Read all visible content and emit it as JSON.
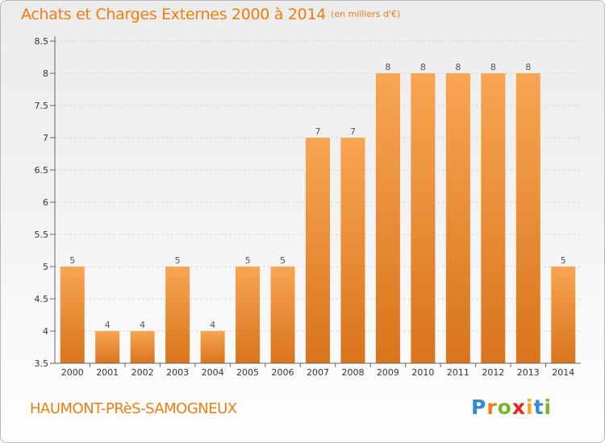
{
  "header": {
    "title": "Achats et Charges Externes 2000 à 2014",
    "unit": "(en milliers d'€)"
  },
  "footer": {
    "commune": "HAUMONT-PRèS-SAMOGNEUX",
    "logo": [
      "P",
      "r",
      "o",
      "x",
      "i",
      "t",
      "i"
    ],
    "logo_colors": [
      "#2f8bd6",
      "#f07d12",
      "#79b52b",
      "#e8231f",
      "#f5a623",
      "#2f8bd6",
      "#79b52b"
    ]
  },
  "colors": {
    "bar_light": "#f8a552",
    "bar_dark": "#d9741c",
    "accent": "#f07d12",
    "grid": "#d4d4d4"
  },
  "chart_data": {
    "type": "bar",
    "title": "Achats et Charges Externes 2000 à 2014",
    "subtitle": "(en milliers d'€)",
    "categories": [
      "2000",
      "2001",
      "2002",
      "2003",
      "2004",
      "2005",
      "2006",
      "2007",
      "2008",
      "2009",
      "2010",
      "2011",
      "2012",
      "2013",
      "2014"
    ],
    "values": [
      5,
      4,
      4,
      5,
      4,
      5,
      5,
      7,
      7,
      8,
      8,
      8,
      8,
      8,
      5
    ],
    "data_labels": [
      "5",
      "4",
      "4",
      "5",
      "4",
      "5",
      "5",
      "7",
      "7",
      "8",
      "8",
      "8",
      "8",
      "8",
      "5"
    ],
    "ylim": [
      3.5,
      8.5
    ],
    "yticks": [
      "3.5",
      "4",
      "4.5",
      "5",
      "5.5",
      "6",
      "6.5",
      "7",
      "7.5",
      "8",
      "8.5"
    ],
    "grid": true,
    "legend": "none"
  }
}
